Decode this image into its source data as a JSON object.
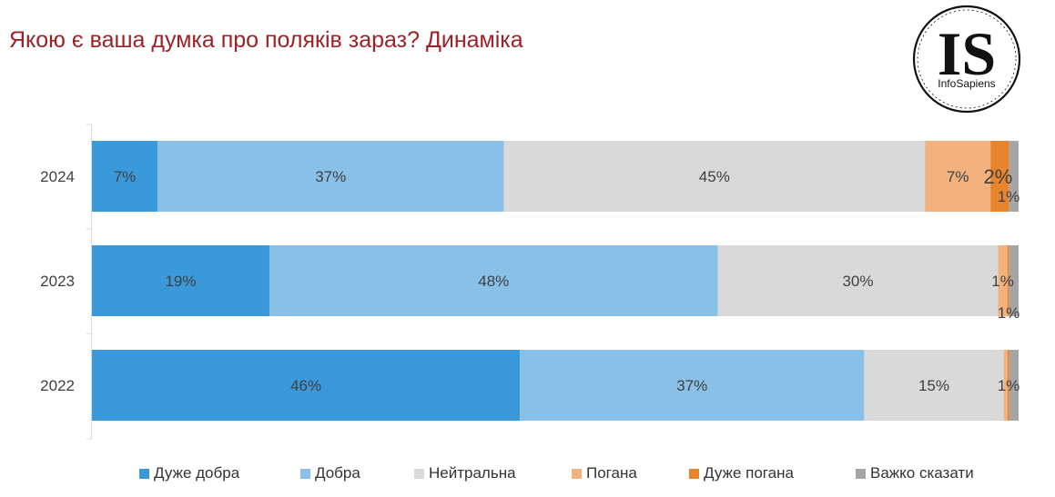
{
  "title": "Якою є ваша думка про поляків зараз? Динаміка",
  "logo": {
    "main": "IS",
    "sub": "InfoSapiens"
  },
  "chart_data": {
    "type": "bar",
    "orientation": "horizontal",
    "stacked": true,
    "normalized_percent": true,
    "categories": [
      "2024",
      "2023",
      "2022"
    ],
    "xlim": [
      0,
      100
    ],
    "grid": false,
    "legend_position": "bottom",
    "series": [
      {
        "name": "Дуже добра",
        "color": "#3A99DB",
        "values": [
          7,
          19,
          46
        ],
        "labels": [
          "7%",
          "19%",
          "46%"
        ]
      },
      {
        "name": "Добра",
        "color": "#88C0E8",
        "values": [
          37,
          48,
          37
        ],
        "labels": [
          "37%",
          "48%",
          "37%"
        ]
      },
      {
        "name": "Нейтральна",
        "color": "#D9D9D9",
        "values": [
          45,
          30,
          15
        ],
        "labels": [
          "45%",
          "30%",
          "15%"
        ]
      },
      {
        "name": "Погана",
        "color": "#F2B27D",
        "values": [
          7,
          1,
          0.4
        ],
        "labels": [
          "7%",
          "1%",
          ""
        ]
      },
      {
        "name": "Дуже погана",
        "color": "#E8832E",
        "values": [
          2,
          0.2,
          0.2
        ],
        "labels": [
          "2%",
          "",
          ""
        ]
      },
      {
        "name": "Важко сказати",
        "color": "#A6A6A6",
        "values": [
          1,
          1,
          1
        ],
        "labels": [
          "1%",
          "1%",
          "1%"
        ]
      }
    ]
  }
}
